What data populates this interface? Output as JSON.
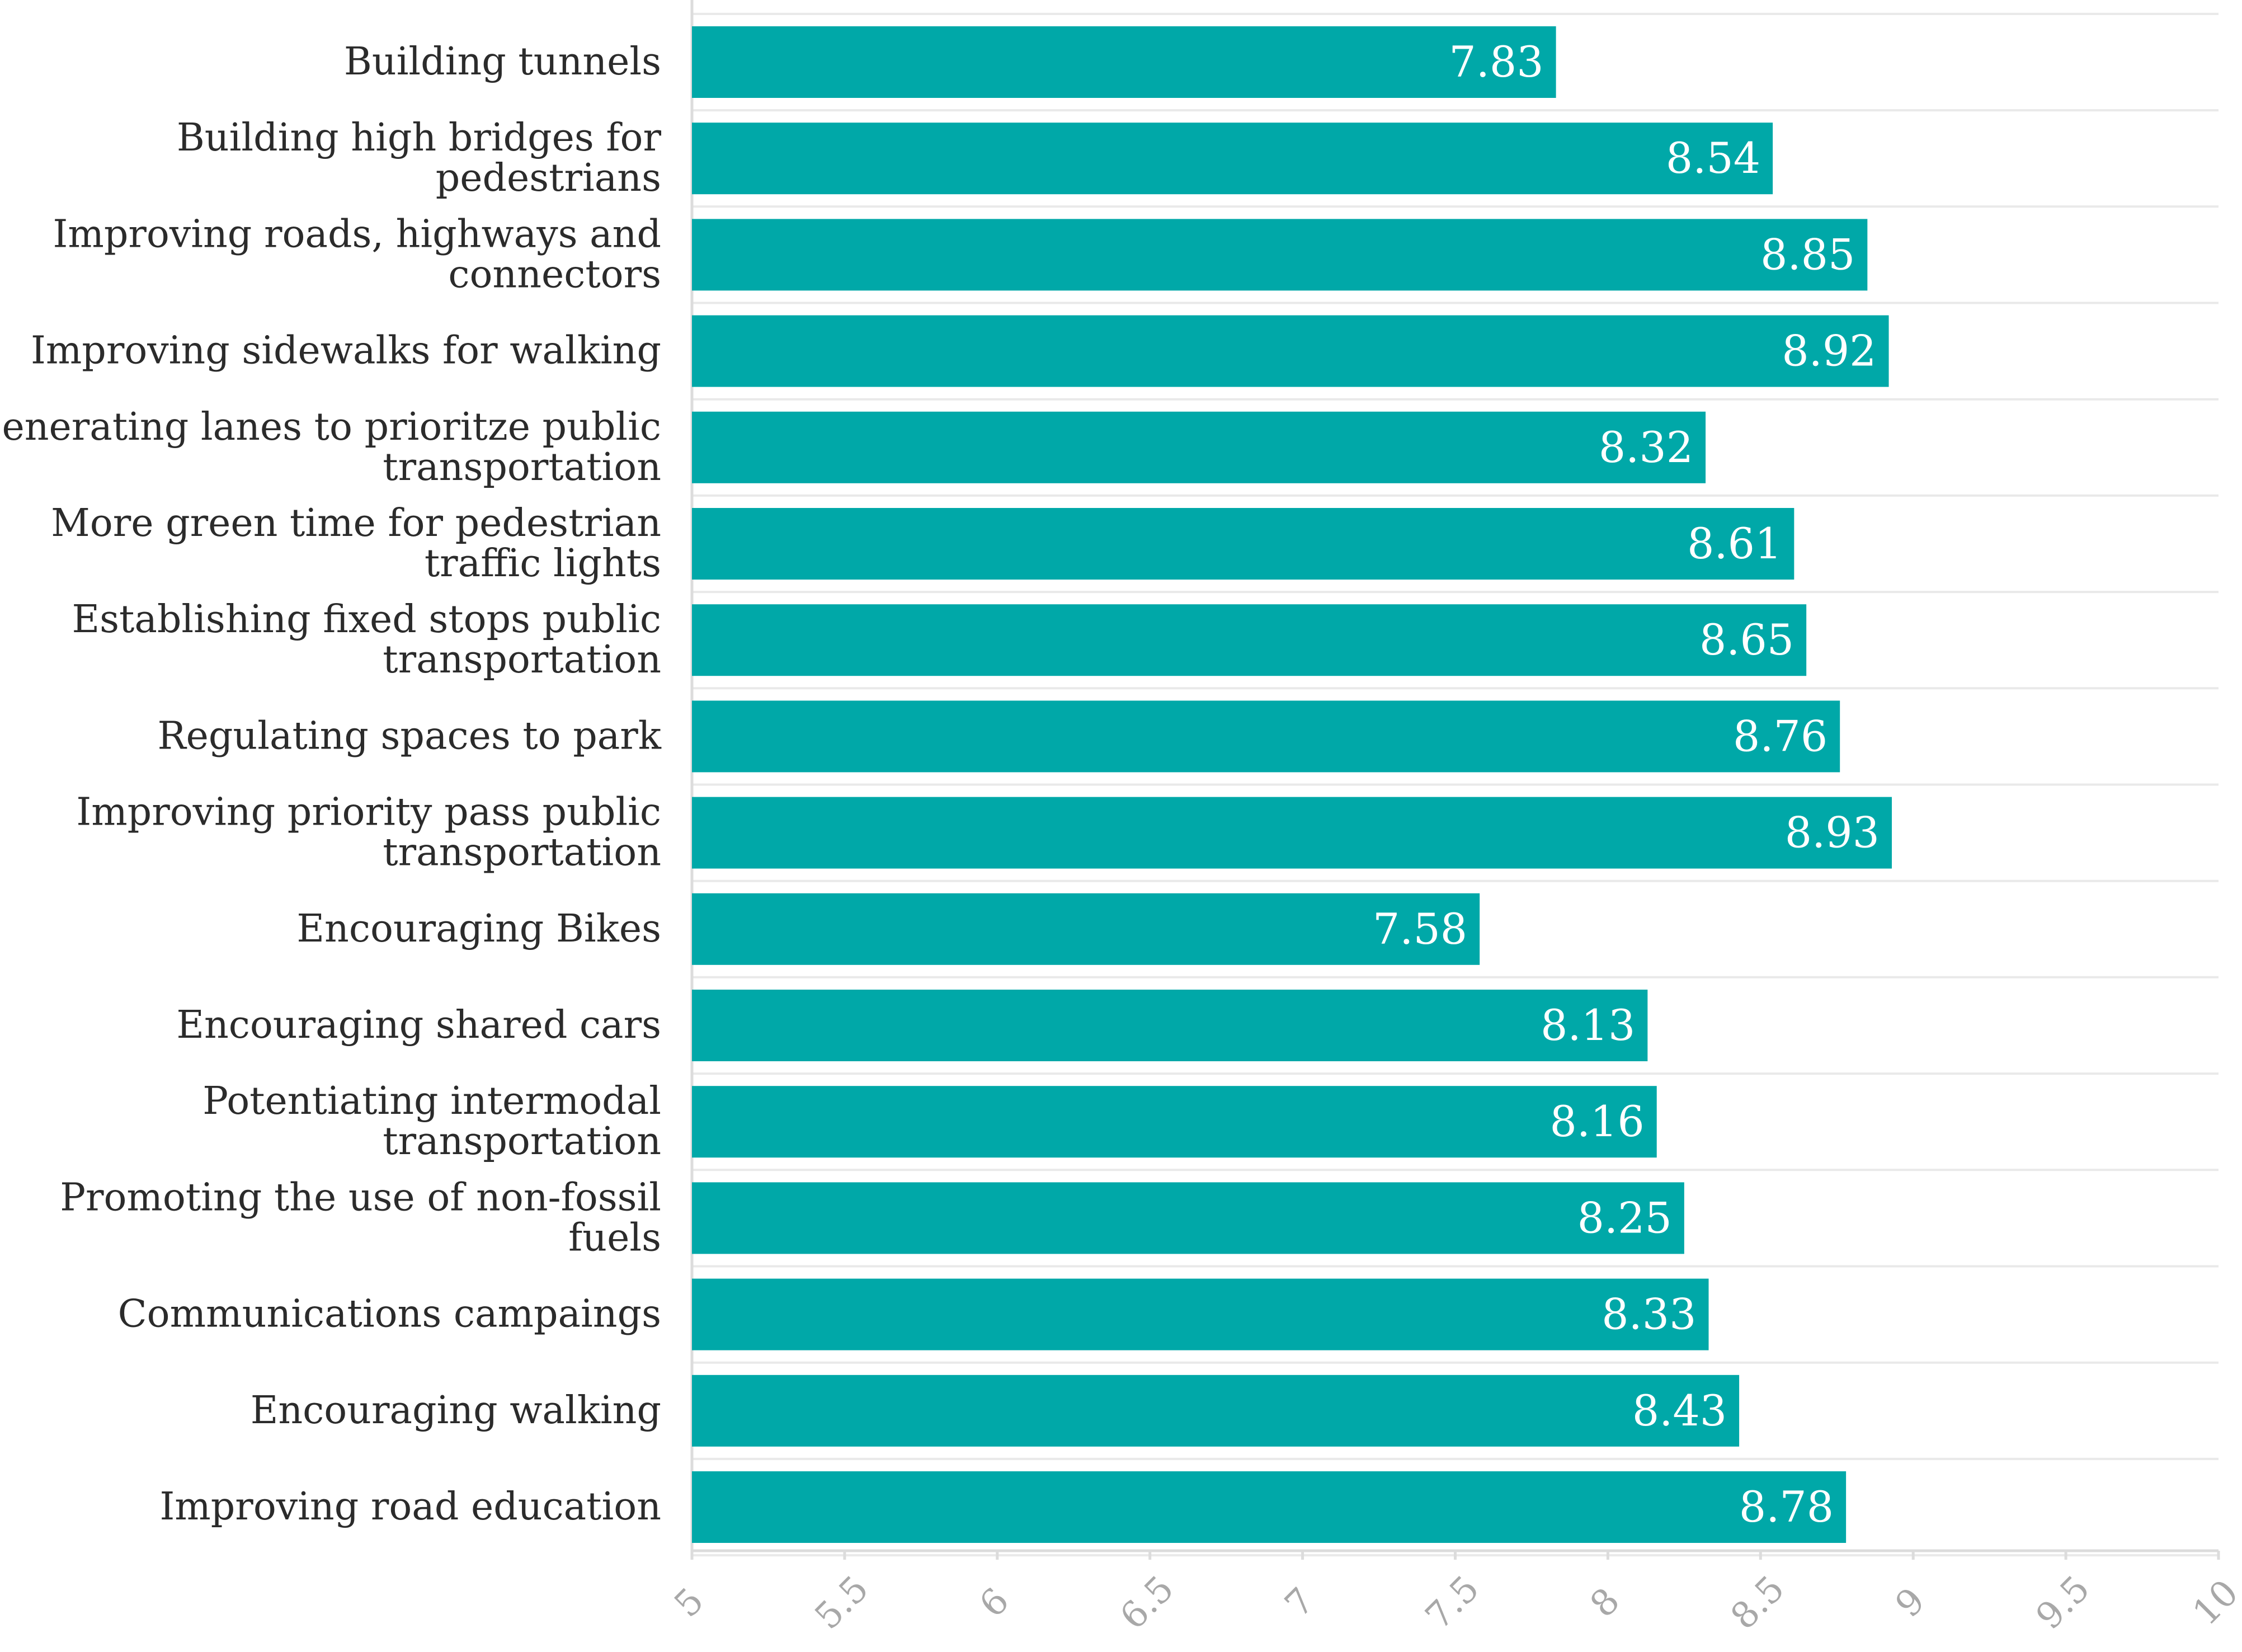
{
  "chart_data": {
    "type": "bar",
    "orientation": "horizontal",
    "title": "",
    "xlabel": "",
    "ylabel": "",
    "xlim": [
      5,
      10
    ],
    "ticks": [
      "5",
      "5.5",
      "6",
      "6.5",
      "7",
      "7.5",
      "8",
      "8.5",
      "9",
      "9.5",
      "10"
    ],
    "grid": true,
    "bar_color": "#00A8A8",
    "categories": [
      [
        "Building tunnels"
      ],
      [
        "Building high bridges for",
        "pedestrians"
      ],
      [
        "Improving roads, highways and",
        "connectors"
      ],
      [
        "Improving sidewalks for walking"
      ],
      [
        "Generating lanes to prioritze public",
        "transportation"
      ],
      [
        "More green time for pedestrian",
        "traffic lights"
      ],
      [
        "Establishing fixed stops public",
        "transportation"
      ],
      [
        "Regulating spaces to park"
      ],
      [
        "Improving priority pass public",
        "transportation"
      ],
      [
        "Encouraging Bikes"
      ],
      [
        "Encouraging shared cars"
      ],
      [
        "Potentiating intermodal",
        "transportation"
      ],
      [
        "Promoting the use of non-fossil",
        "fuels"
      ],
      [
        "Communications campaings"
      ],
      [
        "Encouraging walking"
      ],
      [
        "Improving road education"
      ]
    ],
    "values": [
      7.83,
      8.54,
      8.85,
      8.92,
      8.32,
      8.61,
      8.65,
      8.76,
      8.93,
      7.58,
      8.13,
      8.16,
      8.25,
      8.33,
      8.43,
      8.78
    ],
    "value_labels": [
      "7.83",
      "8.54",
      "8.85",
      "8.92",
      "8.32",
      "8.61",
      "8.65",
      "8.76",
      "8.93",
      "7.58",
      "8.13",
      "8.16",
      "8.25",
      "8.33",
      "8.43",
      "8.78"
    ]
  }
}
